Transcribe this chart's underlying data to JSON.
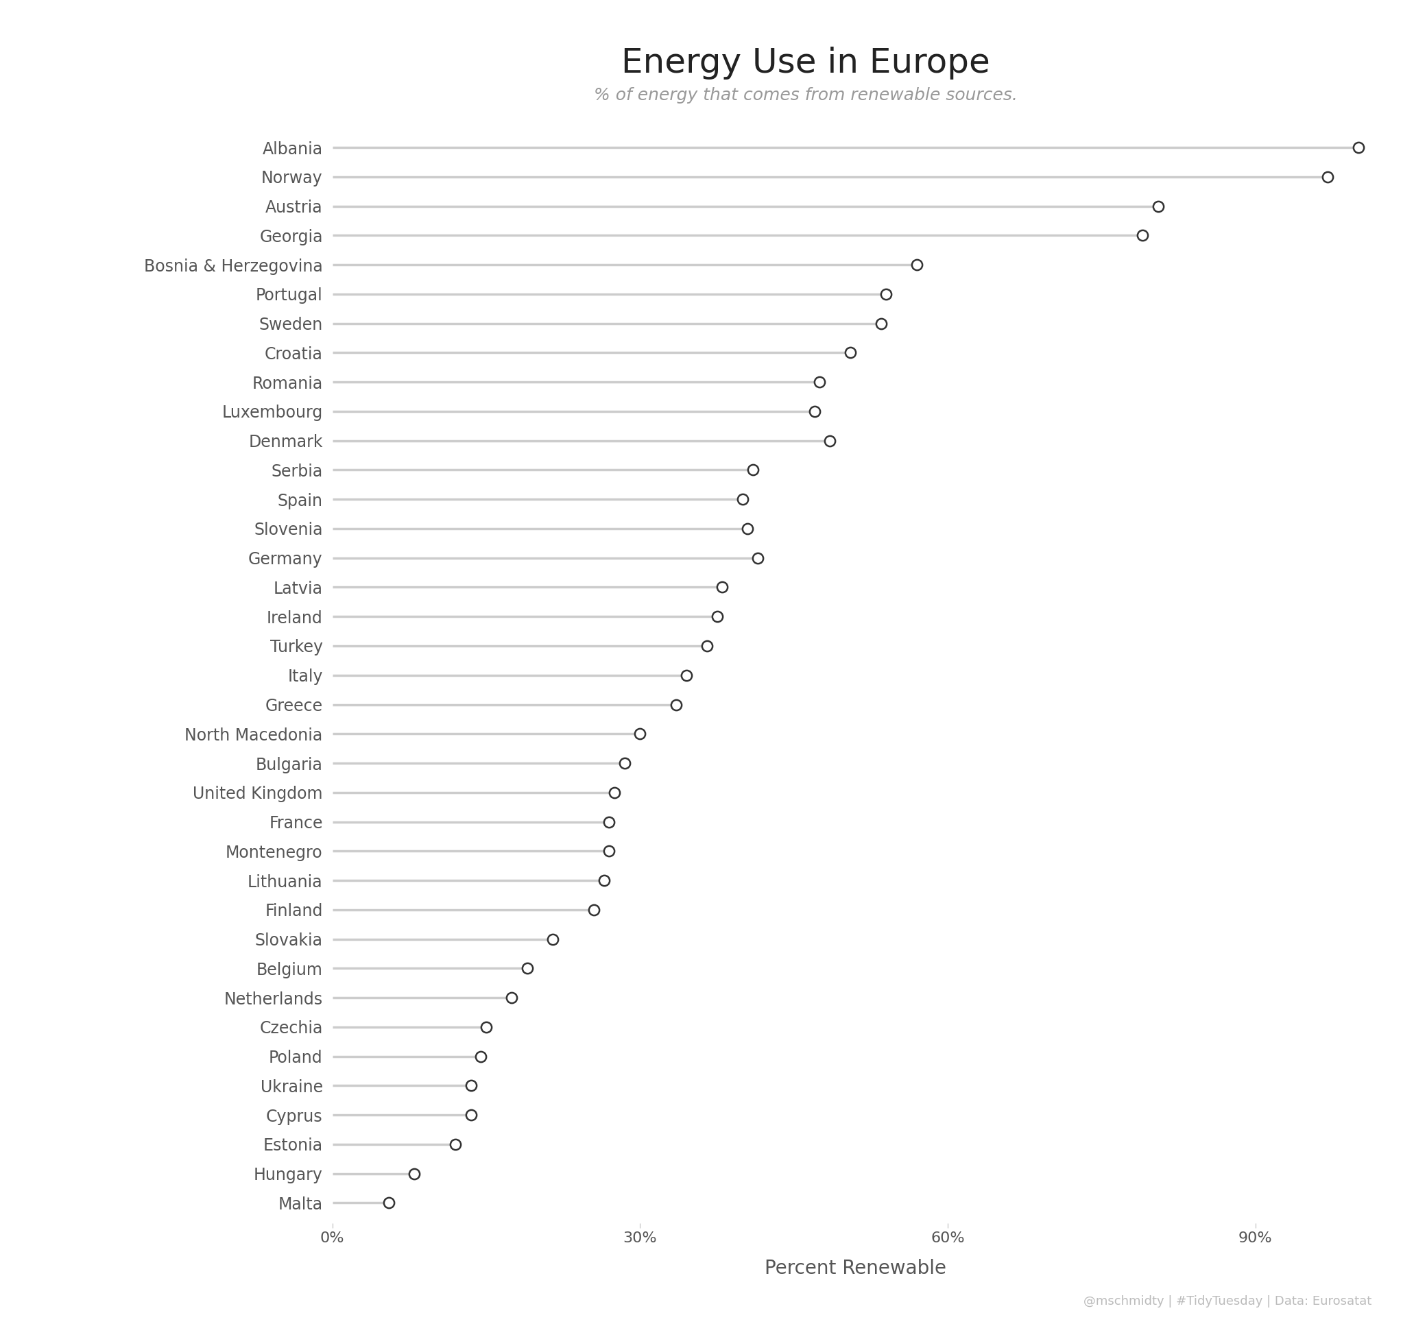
{
  "title": "Energy Use in Europe",
  "subtitle": "% of energy that comes from renewable sources.",
  "xlabel": "Percent Renewable",
  "footer": "@mschmidty | #TidyTuesday | Data: Eurosatat",
  "countries": [
    "Albania",
    "Norway",
    "Austria",
    "Georgia",
    "Bosnia & Herzegovina",
    "Portugal",
    "Sweden",
    "Croatia",
    "Romania",
    "Luxembourg",
    "Denmark",
    "Serbia",
    "Spain",
    "Slovenia",
    "Germany",
    "Latvia",
    "Ireland",
    "Turkey",
    "Italy",
    "Greece",
    "North Macedonia",
    "Bulgaria",
    "United Kingdom",
    "France",
    "Montenegro",
    "Lithuania",
    "Finland",
    "Slovakia",
    "Belgium",
    "Netherlands",
    "Czechia",
    "Poland",
    "Ukraine",
    "Cyprus",
    "Estonia",
    "Hungary",
    "Malta"
  ],
  "values": [
    100.0,
    97.0,
    80.5,
    79.0,
    57.0,
    54.0,
    53.5,
    50.5,
    47.5,
    47.0,
    48.5,
    41.0,
    40.0,
    40.5,
    41.5,
    38.0,
    37.5,
    36.5,
    34.5,
    33.5,
    30.0,
    28.5,
    27.5,
    27.0,
    27.0,
    26.5,
    25.5,
    21.5,
    19.0,
    17.5,
    15.0,
    14.5,
    13.5,
    13.5,
    12.0,
    8.0,
    5.5
  ],
  "background_color": "#ffffff",
  "line_color": "#cccccc",
  "dot_edgecolor": "#333333",
  "dot_facecolor": "white",
  "label_color": "#555555",
  "title_color": "#222222",
  "subtitle_color": "#999999",
  "footer_color": "#bbbbbb",
  "xlim": [
    0,
    102
  ],
  "xtick_positions": [
    0,
    30,
    60,
    90
  ],
  "xtick_labels": [
    "0%",
    "30%",
    "60%",
    "90%"
  ]
}
